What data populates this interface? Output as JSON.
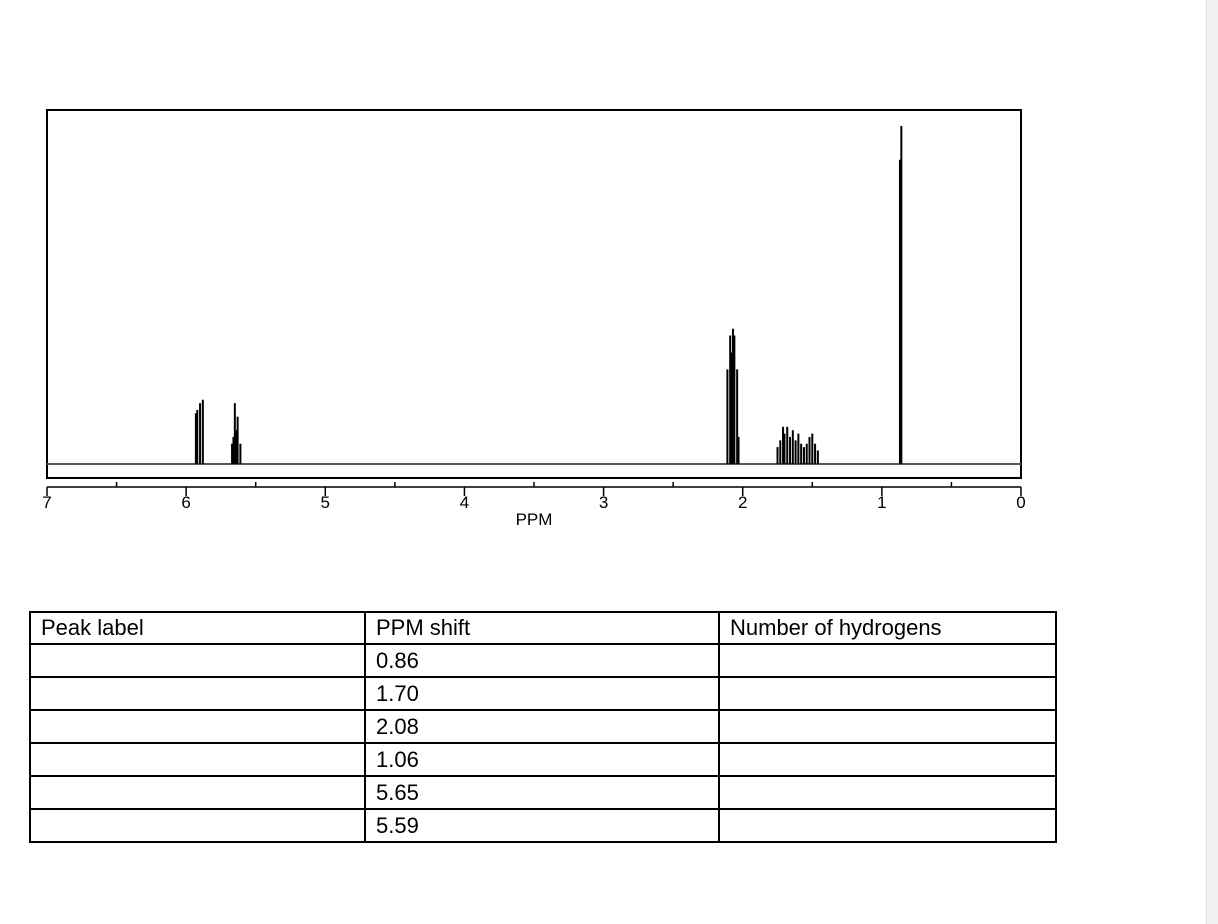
{
  "chart_data": {
    "type": "line",
    "title": "",
    "xlabel": "PPM",
    "ylabel": "",
    "xlim": [
      7,
      0
    ],
    "x_ticks": [
      "7",
      "6",
      "5",
      "4",
      "3",
      "2",
      "1",
      "0"
    ],
    "x_minor_ticks": [
      6.5,
      5.5,
      4.5,
      3.5,
      2.5,
      1.5,
      0.5
    ],
    "grid": false,
    "legend": "none",
    "line_color": "#000000",
    "baseline_color": "#555555",
    "peaks": [
      {
        "ppm": 5.93,
        "height": 0.15
      },
      {
        "ppm": 5.92,
        "height": 0.16
      },
      {
        "ppm": 5.9,
        "height": 0.18
      },
      {
        "ppm": 5.88,
        "height": 0.19
      },
      {
        "ppm": 5.67,
        "height": 0.06
      },
      {
        "ppm": 5.66,
        "height": 0.08
      },
      {
        "ppm": 5.65,
        "height": 0.18
      },
      {
        "ppm": 5.64,
        "height": 0.1
      },
      {
        "ppm": 5.63,
        "height": 0.14
      },
      {
        "ppm": 5.61,
        "height": 0.06
      },
      {
        "ppm": 2.11,
        "height": 0.28
      },
      {
        "ppm": 2.09,
        "height": 0.38
      },
      {
        "ppm": 2.08,
        "height": 0.33
      },
      {
        "ppm": 2.07,
        "height": 0.4
      },
      {
        "ppm": 2.06,
        "height": 0.38
      },
      {
        "ppm": 2.04,
        "height": 0.28
      },
      {
        "ppm": 2.03,
        "height": 0.08
      },
      {
        "ppm": 1.75,
        "height": 0.05
      },
      {
        "ppm": 1.73,
        "height": 0.07
      },
      {
        "ppm": 1.71,
        "height": 0.11
      },
      {
        "ppm": 1.7,
        "height": 0.09
      },
      {
        "ppm": 1.68,
        "height": 0.11
      },
      {
        "ppm": 1.66,
        "height": 0.08
      },
      {
        "ppm": 1.64,
        "height": 0.1
      },
      {
        "ppm": 1.62,
        "height": 0.07
      },
      {
        "ppm": 1.6,
        "height": 0.09
      },
      {
        "ppm": 1.58,
        "height": 0.06
      },
      {
        "ppm": 1.56,
        "height": 0.05
      },
      {
        "ppm": 1.54,
        "height": 0.06
      },
      {
        "ppm": 1.52,
        "height": 0.08
      },
      {
        "ppm": 1.5,
        "height": 0.09
      },
      {
        "ppm": 1.48,
        "height": 0.06
      },
      {
        "ppm": 1.46,
        "height": 0.04
      },
      {
        "ppm": 0.87,
        "height": 0.9
      },
      {
        "ppm": 0.86,
        "height": 1.0
      }
    ]
  },
  "table": {
    "headers": [
      "Peak label",
      "PPM shift",
      "Number of hydrogens"
    ],
    "rows": [
      [
        "",
        "0.86",
        ""
      ],
      [
        "",
        "1.70",
        ""
      ],
      [
        "",
        "2.08",
        ""
      ],
      [
        "",
        "1.06",
        ""
      ],
      [
        "",
        "5.65",
        ""
      ],
      [
        "",
        "5.59",
        ""
      ]
    ]
  }
}
